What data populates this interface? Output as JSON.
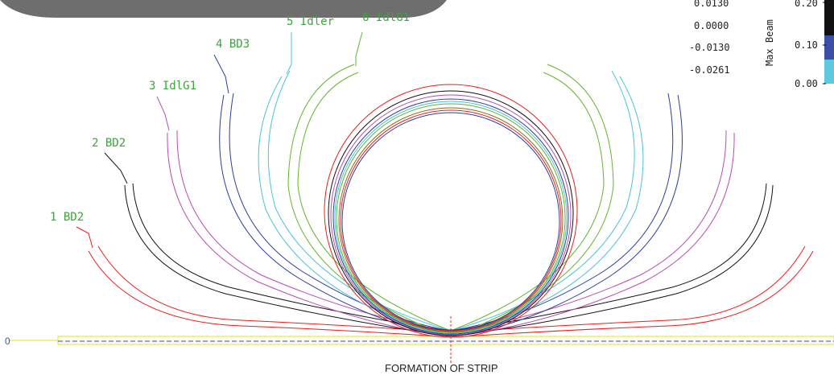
{
  "caption": "FORMATION OF STRIP",
  "origin_label": "0",
  "stations": [
    {
      "number": "1",
      "name": "BD2",
      "color": "#e8201e"
    },
    {
      "number": "2",
      "name": "BD2",
      "color": "#111111"
    },
    {
      "number": "3",
      "name": "IdlG1",
      "color": "#b84db0"
    },
    {
      "number": "4",
      "name": "BD3",
      "color": "#2b3f96"
    },
    {
      "number": "5",
      "name": "Idler",
      "color": "#4cc3d9"
    },
    {
      "number": "6",
      "name": "IdlG1",
      "color": "#63b52c"
    }
  ],
  "legend": {
    "values": [
      "0.0130",
      "0.0000",
      "-0.0130",
      "-0.0261"
    ],
    "axis_title": "Max Beam",
    "scale_ticks": [
      "0.20",
      "0.10",
      "0.00"
    ],
    "scale_colors": [
      "#111111",
      "#3b4fa8",
      "#5ec8e0"
    ]
  },
  "colors": {
    "strip": "#e8e21a",
    "centerline": "#3a3ad0",
    "label_text": "#3aa63a",
    "zero_text": "#1d63c6",
    "header_bar": "#6e6e6e"
  }
}
